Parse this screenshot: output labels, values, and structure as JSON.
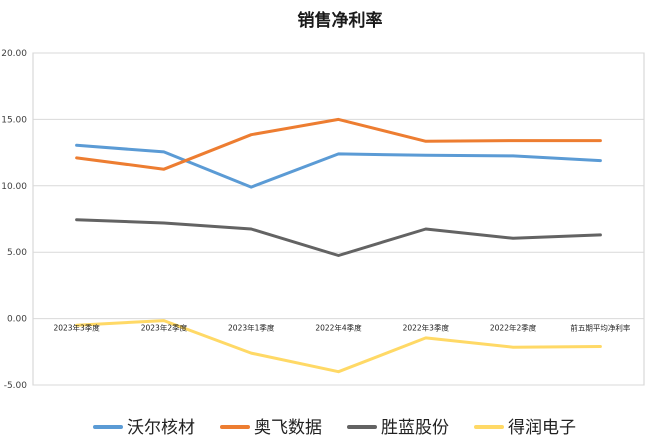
{
  "chart_data": {
    "type": "line",
    "title": "销售净利率",
    "categories": [
      "2023年3季度",
      "2023年2季度",
      "2023年1季度",
      "2022年4季度",
      "2022年3季度",
      "2022年2季度",
      "前五期平均净利率"
    ],
    "y_tick_labels": [
      "20.00",
      "15.00",
      "10.00",
      "5.00",
      "0.00",
      "-5.00"
    ],
    "ylim": [
      -5,
      20
    ],
    "y_ticks": [
      -5,
      0,
      5,
      10,
      15,
      20
    ],
    "grid": true,
    "legend_position": "bottom",
    "series": [
      {
        "name": "沃尔核材",
        "color": "#5B9BD5",
        "values": [
          13.05,
          12.55,
          9.9,
          12.4,
          12.3,
          12.25,
          11.9
        ]
      },
      {
        "name": "奥飞数据",
        "color": "#ED7D31",
        "values": [
          12.1,
          11.25,
          13.85,
          15.0,
          13.35,
          13.4,
          13.4
        ]
      },
      {
        "name": "胜蓝股份",
        "color": "#636363",
        "values": [
          7.45,
          7.2,
          6.75,
          4.75,
          6.75,
          6.05,
          6.3
        ]
      },
      {
        "name": "得润电子",
        "color": "#FFD966",
        "values": [
          -0.5,
          -0.15,
          -2.6,
          -4.0,
          -1.45,
          -2.15,
          -2.1
        ]
      }
    ]
  }
}
